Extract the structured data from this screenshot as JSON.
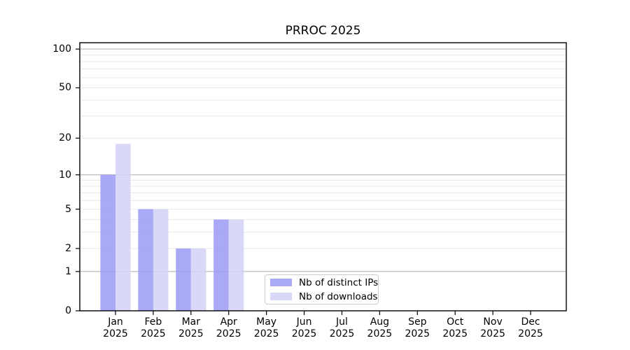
{
  "title": "PRROC 2025",
  "chart_data": {
    "type": "bar",
    "title": "PRROC 2025",
    "categories": [
      "Jan",
      "Feb",
      "Mar",
      "Apr",
      "May",
      "Jun",
      "Jul",
      "Aug",
      "Sep",
      "Oct",
      "Nov",
      "Dec"
    ],
    "x_tick_second_line": "2025",
    "series": [
      {
        "name": "Nb of distinct IPs",
        "color": "#a9a9f7",
        "values": [
          10,
          5,
          2,
          4,
          0,
          0,
          0,
          0,
          0,
          0,
          0,
          0
        ]
      },
      {
        "name": "Nb of downloads",
        "color": "#d9d9f7",
        "values": [
          18,
          5,
          2,
          4,
          0,
          0,
          0,
          0,
          0,
          0,
          0,
          0
        ]
      }
    ],
    "y_axis": {
      "scale": "log1p",
      "ticks": [
        0,
        1,
        2,
        5,
        10,
        20,
        50,
        100
      ],
      "major_gridlines": [
        1,
        10,
        100
      ],
      "minor_gridlines": [
        2,
        3,
        4,
        5,
        6,
        7,
        8,
        9,
        20,
        30,
        40,
        50,
        60,
        70,
        80,
        90
      ],
      "ylim": [
        0,
        112
      ]
    },
    "grid": true,
    "legend_position": "lower-center"
  },
  "colors": {
    "background": "#ffffff",
    "axis": "#000000",
    "text": "#000000",
    "major_grid": "#b3b3b3",
    "minor_grid": "#e9e9e9",
    "legend_border": "#cccccc"
  }
}
